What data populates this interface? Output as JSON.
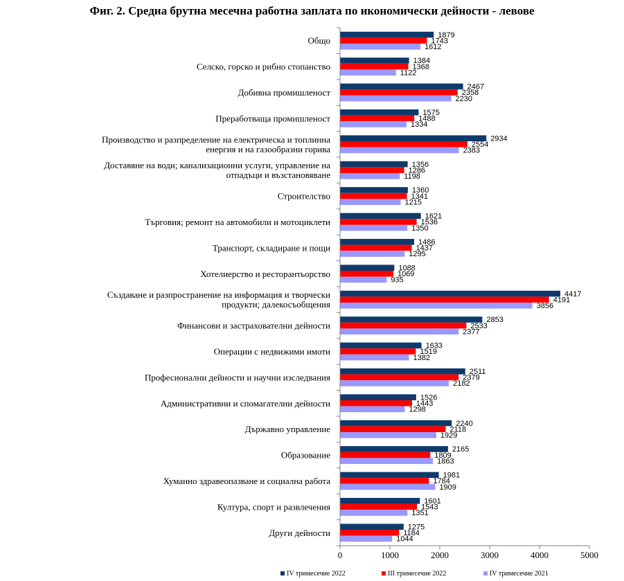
{
  "chart_data": {
    "type": "bar",
    "orientation": "horizontal",
    "title": "Фиг. 2. Средна брутна месечна работна заплата по икономически дейности - левове",
    "xlabel": "",
    "ylabel": "",
    "xlim": [
      0,
      5000
    ],
    "xticks": [
      "0",
      "1000",
      "2000",
      "3000",
      "4000",
      "5000"
    ],
    "grid": false,
    "legend_position": "bottom",
    "categories": [
      [
        "Общо"
      ],
      [
        "Селско, горско и рибно стопанство"
      ],
      [
        "Добивна промишленост"
      ],
      [
        "Преработваща промишленост"
      ],
      [
        "Производство и разпределение  на електрическа и топлинна",
        "енергия и на газообразни горива"
      ],
      [
        "Доставяне на води; канализационни услуги,  управление на",
        "отпадъци и възстановяване"
      ],
      [
        "Строителство"
      ],
      [
        "Търговия; ремонт на автомобили и мотоциклети"
      ],
      [
        "Транспорт,  складиране и пощи"
      ],
      [
        "Хотелиерство  и ресторантьорство"
      ],
      [
        "Създаване и разпространение  на информация и творчески",
        "продукти; далекосъобщения"
      ],
      [
        "Финансови и застрахователни  дейности"
      ],
      [
        "Операции  с недвижими имоти"
      ],
      [
        "Професионални дейности и научни изследвания"
      ],
      [
        "Административни  и спомагателни дейности"
      ],
      [
        "Държавно управление"
      ],
      [
        "Образование"
      ],
      [
        "Хуманно  здравеопазване и социална работа"
      ],
      [
        "Култура,  спорт и развлечения"
      ],
      [
        "Други дейности"
      ]
    ],
    "series": [
      {
        "name": "IV тримесечие 2022",
        "color": "#0d3a6b",
        "values": [
          1879,
          1384,
          2467,
          1575,
          2934,
          1356,
          1360,
          1621,
          1486,
          1088,
          4417,
          2853,
          1633,
          2511,
          1526,
          2240,
          2165,
          1981,
          1601,
          1275
        ]
      },
      {
        "name": "III тримесечие 2022",
        "color": "#ff0000",
        "values": [
          1743,
          1368,
          2358,
          1488,
          2554,
          1286,
          1341,
          1536,
          1437,
          1069,
          4191,
          2533,
          1519,
          2379,
          1443,
          2118,
          1809,
          1784,
          1543,
          1184
        ]
      },
      {
        "name": "IV тримесечие 2021",
        "color": "#9999ff",
        "values": [
          1612,
          1122,
          2230,
          1334,
          2383,
          1198,
          1215,
          1350,
          1295,
          935,
          3856,
          2377,
          1382,
          2182,
          1298,
          1929,
          1863,
          1909,
          1351,
          1044
        ]
      }
    ]
  }
}
